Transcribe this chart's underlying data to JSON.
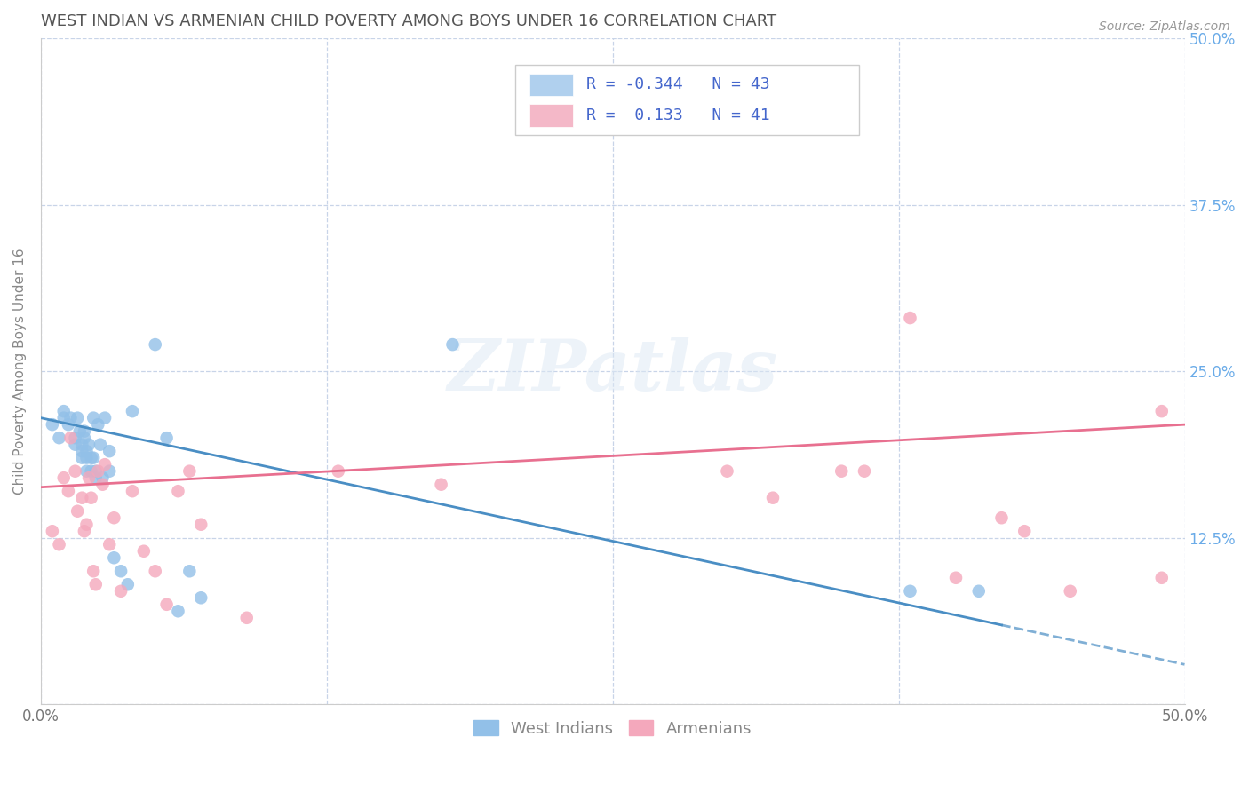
{
  "title": "WEST INDIAN VS ARMENIAN CHILD POVERTY AMONG BOYS UNDER 16 CORRELATION CHART",
  "source": "Source: ZipAtlas.com",
  "ylabel": "Child Poverty Among Boys Under 16",
  "xlim": [
    0.0,
    0.5
  ],
  "ylim": [
    0.0,
    0.5
  ],
  "blue_color": "#92c0e8",
  "pink_color": "#f4a8bc",
  "blue_line_color": "#4a8ec4",
  "pink_line_color": "#e87090",
  "background_color": "#ffffff",
  "grid_color": "#c8d4e8",
  "title_color": "#555555",
  "right_tick_color": "#6aabe8",
  "legend_label_blue": "West Indians",
  "legend_label_pink": "Armenians",
  "watermark": "ZIPatlas",
  "blue_x": [
    0.005,
    0.008,
    0.01,
    0.01,
    0.012,
    0.013,
    0.015,
    0.015,
    0.016,
    0.017,
    0.018,
    0.018,
    0.018,
    0.019,
    0.019,
    0.02,
    0.02,
    0.02,
    0.021,
    0.022,
    0.022,
    0.023,
    0.023,
    0.024,
    0.024,
    0.025,
    0.026,
    0.027,
    0.028,
    0.03,
    0.03,
    0.032,
    0.035,
    0.038,
    0.04,
    0.05,
    0.055,
    0.06,
    0.065,
    0.07,
    0.18,
    0.38,
    0.41
  ],
  "blue_y": [
    0.21,
    0.2,
    0.22,
    0.215,
    0.21,
    0.215,
    0.2,
    0.195,
    0.215,
    0.205,
    0.195,
    0.19,
    0.185,
    0.205,
    0.2,
    0.175,
    0.19,
    0.185,
    0.195,
    0.185,
    0.175,
    0.185,
    0.215,
    0.175,
    0.17,
    0.21,
    0.195,
    0.17,
    0.215,
    0.19,
    0.175,
    0.11,
    0.1,
    0.09,
    0.22,
    0.27,
    0.2,
    0.07,
    0.1,
    0.08,
    0.27,
    0.085,
    0.085
  ],
  "pink_x": [
    0.005,
    0.008,
    0.01,
    0.012,
    0.013,
    0.015,
    0.016,
    0.018,
    0.019,
    0.02,
    0.021,
    0.022,
    0.023,
    0.024,
    0.025,
    0.027,
    0.028,
    0.03,
    0.032,
    0.035,
    0.04,
    0.045,
    0.05,
    0.055,
    0.06,
    0.065,
    0.07,
    0.09,
    0.13,
    0.175,
    0.3,
    0.32,
    0.35,
    0.36,
    0.38,
    0.4,
    0.42,
    0.43,
    0.45,
    0.49,
    0.49
  ],
  "pink_y": [
    0.13,
    0.12,
    0.17,
    0.16,
    0.2,
    0.175,
    0.145,
    0.155,
    0.13,
    0.135,
    0.17,
    0.155,
    0.1,
    0.09,
    0.175,
    0.165,
    0.18,
    0.12,
    0.14,
    0.085,
    0.16,
    0.115,
    0.1,
    0.075,
    0.16,
    0.175,
    0.135,
    0.065,
    0.175,
    0.165,
    0.175,
    0.155,
    0.175,
    0.175,
    0.29,
    0.095,
    0.14,
    0.13,
    0.085,
    0.22,
    0.095
  ],
  "blue_line_x0": 0.0,
  "blue_line_y0": 0.215,
  "blue_line_x1": 0.5,
  "blue_line_y1": 0.03,
  "blue_line_solid_end": 0.42,
  "pink_line_x0": 0.0,
  "pink_line_y0": 0.163,
  "pink_line_x1": 0.5,
  "pink_line_y1": 0.21
}
